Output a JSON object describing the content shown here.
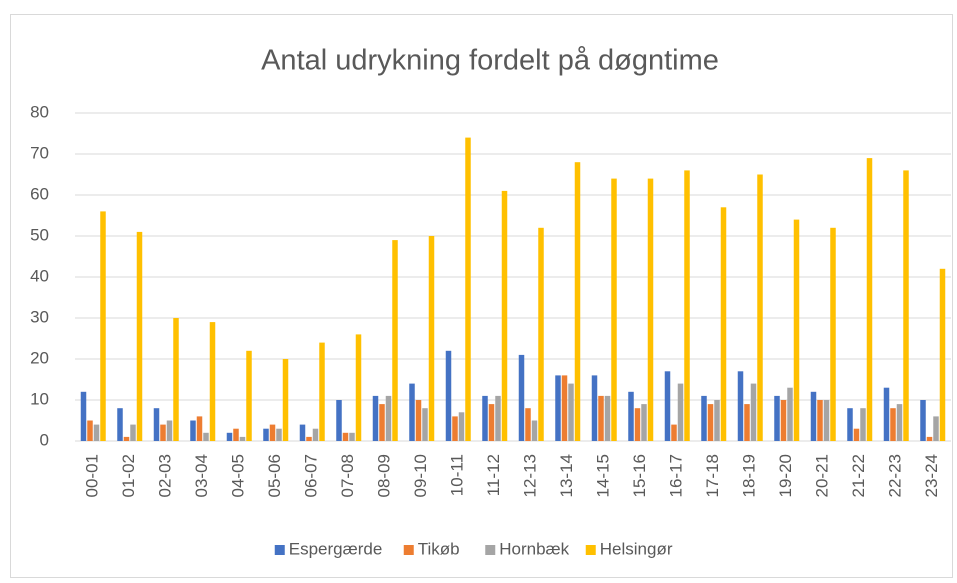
{
  "chart_data": {
    "type": "bar",
    "title": "Antal udrykning fordelt på døgntime",
    "categories": [
      "00-01",
      "01-02",
      "02-03",
      "03-04",
      "04-05",
      "05-06",
      "06-07",
      "07-08",
      "08-09",
      "09-10",
      "10-11",
      "11-12",
      "12-13",
      "13-14",
      "14-15",
      "15-16",
      "16-17",
      "17-18",
      "18-19",
      "19-20",
      "20-21",
      "21-22",
      "22-23",
      "23-24"
    ],
    "series": [
      {
        "name": "Espergærde",
        "color": "#4472c4",
        "values": [
          12,
          8,
          8,
          5,
          2,
          3,
          4,
          10,
          11,
          14,
          22,
          11,
          21,
          16,
          16,
          12,
          17,
          11,
          17,
          11,
          12,
          8,
          13,
          10
        ]
      },
      {
        "name": "Tikøb",
        "color": "#ed7d31",
        "values": [
          5,
          1,
          4,
          6,
          3,
          4,
          1,
          2,
          9,
          10,
          6,
          9,
          8,
          16,
          11,
          8,
          4,
          9,
          9,
          10,
          10,
          3,
          8,
          1
        ]
      },
      {
        "name": "Hornbæk",
        "color": "#a5a5a5",
        "values": [
          4,
          4,
          5,
          2,
          1,
          3,
          3,
          2,
          11,
          8,
          7,
          11,
          5,
          14,
          11,
          9,
          14,
          10,
          14,
          13,
          10,
          8,
          9,
          6
        ]
      },
      {
        "name": "Helsingør",
        "color": "#ffc000",
        "values": [
          56,
          51,
          30,
          29,
          22,
          20,
          24,
          26,
          49,
          50,
          74,
          61,
          52,
          68,
          64,
          64,
          66,
          57,
          65,
          54,
          52,
          69,
          66,
          42
        ]
      }
    ],
    "ylim": [
      0,
      80
    ],
    "yticks": [
      0,
      10,
      20,
      30,
      40,
      50,
      60,
      70,
      80
    ],
    "grid": true,
    "legend": "bottom"
  }
}
